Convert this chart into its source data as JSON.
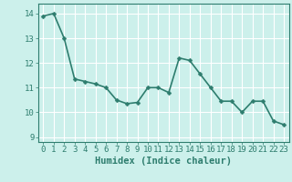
{
  "x": [
    0,
    1,
    2,
    3,
    4,
    5,
    6,
    7,
    8,
    9,
    10,
    11,
    12,
    13,
    14,
    15,
    16,
    17,
    18,
    19,
    20,
    21,
    22,
    23
  ],
  "y": [
    13.9,
    14.0,
    13.0,
    11.35,
    11.25,
    11.15,
    11.0,
    10.5,
    10.35,
    10.4,
    11.0,
    11.0,
    10.8,
    12.2,
    12.1,
    11.55,
    11.0,
    10.45,
    10.45,
    10.0,
    10.45,
    10.45,
    9.65,
    9.5
  ],
  "line_color": "#2e7d6e",
  "marker_color": "#2e7d6e",
  "bg_color": "#ccf0eb",
  "grid_color": "#ffffff",
  "xlabel": "Humidex (Indice chaleur)",
  "ylim": [
    8.8,
    14.4
  ],
  "xlim": [
    -0.5,
    23.5
  ],
  "yticks": [
    9,
    10,
    11,
    12,
    13,
    14
  ],
  "xticks": [
    0,
    1,
    2,
    3,
    4,
    5,
    6,
    7,
    8,
    9,
    10,
    11,
    12,
    13,
    14,
    15,
    16,
    17,
    18,
    19,
    20,
    21,
    22,
    23
  ],
  "tick_color": "#2e7d6e",
  "label_color": "#2e7d6e",
  "font_size_xlabel": 7.5,
  "font_size_ticks": 6.5,
  "line_width": 1.2,
  "marker_size": 2.5
}
